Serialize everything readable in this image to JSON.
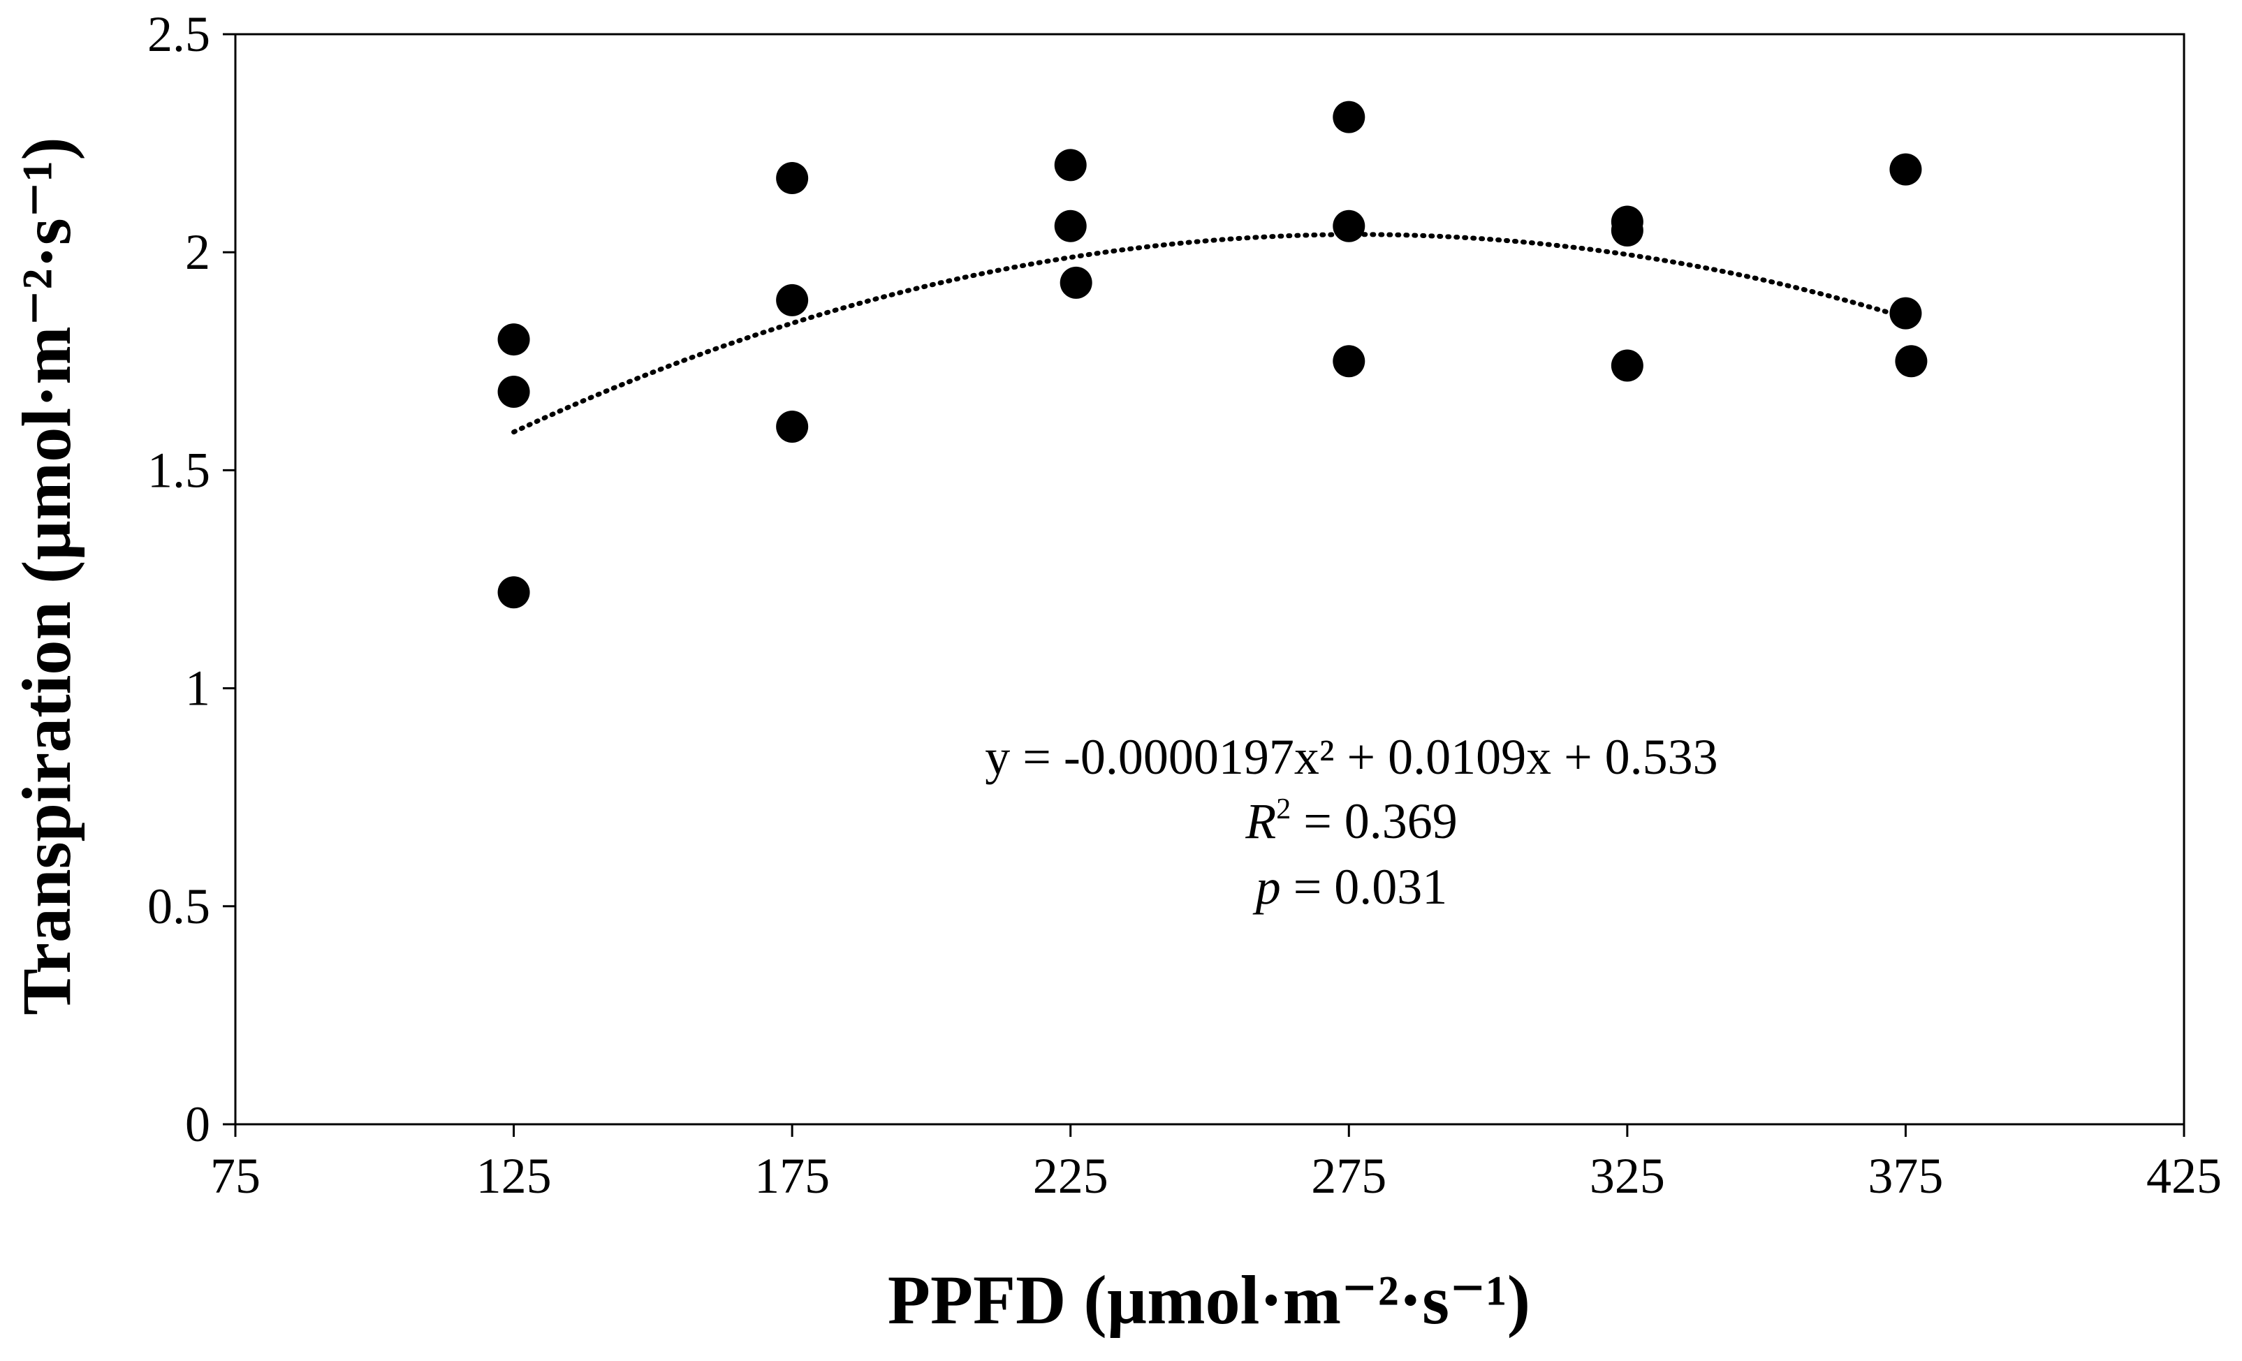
{
  "chart_data": {
    "type": "scatter",
    "title": "",
    "xlabel": "PPFD (µmol·m⁻²·s⁻¹)",
    "ylabel": "Transpiration (µmol·m⁻²·s⁻¹)",
    "xlim": [
      75,
      425
    ],
    "ylim": [
      0,
      2.5
    ],
    "grid": false,
    "xticks": [
      75,
      125,
      175,
      225,
      275,
      325,
      375,
      425
    ],
    "yticks": [
      0,
      0.5,
      1,
      1.5,
      2,
      2.5
    ],
    "xtick_labels": [
      "75",
      "125",
      "175",
      "225",
      "275",
      "325",
      "375",
      "425"
    ],
    "ytick_labels": [
      "0",
      "0.5",
      "1",
      "1.5",
      "2",
      "2.5"
    ],
    "series": [
      {
        "name": "Transpiration",
        "marker": "circle",
        "color": "#000000",
        "points": [
          {
            "x": 125,
            "y": 1.8
          },
          {
            "x": 125,
            "y": 1.68
          },
          {
            "x": 125,
            "y": 1.22
          },
          {
            "x": 175,
            "y": 2.17
          },
          {
            "x": 175,
            "y": 1.89
          },
          {
            "x": 175,
            "y": 1.6
          },
          {
            "x": 225,
            "y": 2.2
          },
          {
            "x": 225,
            "y": 2.06
          },
          {
            "x": 226,
            "y": 1.93
          },
          {
            "x": 275,
            "y": 2.31
          },
          {
            "x": 275,
            "y": 2.06
          },
          {
            "x": 275,
            "y": 1.75
          },
          {
            "x": 325,
            "y": 2.07
          },
          {
            "x": 325,
            "y": 2.05
          },
          {
            "x": 325,
            "y": 1.74
          },
          {
            "x": 375,
            "y": 2.19
          },
          {
            "x": 375,
            "y": 1.86
          },
          {
            "x": 376,
            "y": 1.75
          }
        ]
      }
    ],
    "trendline": {
      "type": "polynomial",
      "order": 2,
      "coefficients": {
        "a": -1.97e-05,
        "b": 0.0109,
        "c": 0.533
      },
      "x_range": [
        125,
        375
      ],
      "style": "dotted"
    },
    "annotations": {
      "equation": "y = -0.0000197x² +  0.0109x + 0.533",
      "r2_symbol": "R",
      "r2_sup": "2",
      "r2_value": " = 0.369",
      "p_symbol": "p",
      "p_value": " = 0.031"
    }
  }
}
